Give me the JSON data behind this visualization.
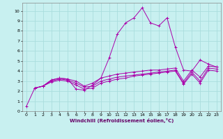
{
  "xlabel": "Windchill (Refroidissement éolien,°C)",
  "bg_color": "#c8f0f0",
  "grid_color": "#aadddd",
  "line_color": "#aa00aa",
  "xlim": [
    -0.5,
    23.5
  ],
  "ylim": [
    0,
    10.8
  ],
  "xticks": [
    0,
    1,
    2,
    3,
    4,
    5,
    6,
    7,
    8,
    9,
    10,
    11,
    12,
    13,
    14,
    15,
    16,
    17,
    18,
    19,
    20,
    21,
    22,
    23
  ],
  "yticks": [
    0,
    1,
    2,
    3,
    4,
    5,
    6,
    7,
    8,
    9,
    10
  ],
  "curve1_x": [
    0,
    1,
    2,
    3,
    4,
    5,
    6,
    7,
    8,
    9,
    10,
    11,
    12,
    13,
    14,
    15,
    16,
    17,
    18,
    19,
    20,
    21,
    22,
    23
  ],
  "curve1_y": [
    0.5,
    2.3,
    2.5,
    3.1,
    3.3,
    3.2,
    2.2,
    2.1,
    2.6,
    3.3,
    5.3,
    7.7,
    8.8,
    9.3,
    10.3,
    8.8,
    8.5,
    9.3,
    6.4,
    4.1,
    4.0,
    5.1,
    4.7,
    4.4
  ],
  "curve2_x": [
    1,
    2,
    3,
    4,
    5,
    6,
    7,
    8,
    9,
    10,
    11,
    12,
    13,
    14,
    15,
    16,
    17,
    18,
    19,
    20,
    21,
    22,
    23
  ],
  "curve2_y": [
    2.3,
    2.5,
    3.1,
    3.3,
    3.2,
    3.0,
    2.5,
    2.8,
    3.3,
    3.5,
    3.7,
    3.8,
    3.9,
    4.0,
    4.1,
    4.1,
    4.2,
    4.3,
    3.0,
    4.1,
    3.4,
    4.5,
    4.4
  ],
  "curve3_x": [
    1,
    2,
    3,
    4,
    5,
    6,
    7,
    8,
    9,
    10,
    11,
    12,
    13,
    14,
    15,
    16,
    17,
    18,
    19,
    20,
    21,
    22,
    23
  ],
  "curve3_y": [
    2.3,
    2.5,
    3.0,
    3.2,
    3.1,
    2.8,
    2.4,
    2.5,
    3.0,
    3.2,
    3.4,
    3.5,
    3.6,
    3.7,
    3.8,
    3.9,
    4.0,
    4.1,
    2.8,
    3.9,
    3.0,
    4.3,
    4.2
  ],
  "curve4_x": [
    1,
    2,
    3,
    4,
    5,
    6,
    7,
    8,
    9,
    10,
    11,
    12,
    13,
    14,
    15,
    16,
    17,
    18,
    19,
    20,
    21,
    22,
    23
  ],
  "curve4_y": [
    2.3,
    2.5,
    2.9,
    3.1,
    3.0,
    2.6,
    2.2,
    2.3,
    2.8,
    3.0,
    3.2,
    3.3,
    3.5,
    3.6,
    3.7,
    3.8,
    3.9,
    4.0,
    2.7,
    3.7,
    2.8,
    4.1,
    4.0
  ]
}
